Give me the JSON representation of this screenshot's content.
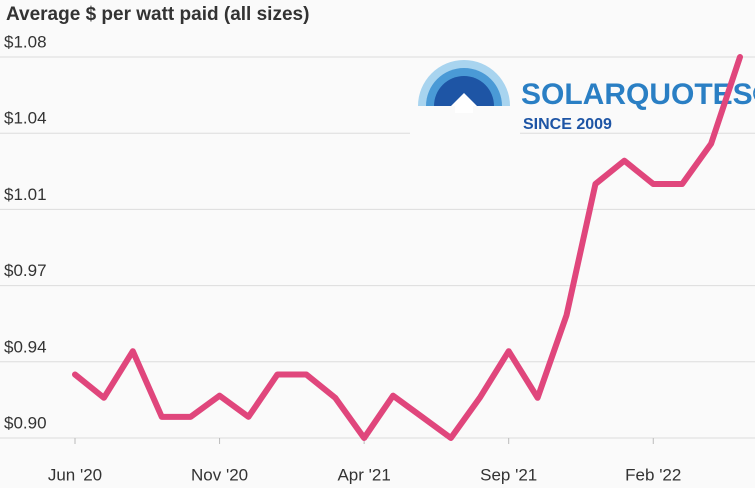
{
  "chart_data": {
    "type": "line",
    "title": "Average $ per watt paid (all sizes)",
    "annotations": [
      "SOLARQUOTES®",
      "SINCE 2009"
    ],
    "categories": [
      "Jun '20",
      null,
      null,
      null,
      null,
      "Nov '20",
      null,
      null,
      null,
      null,
      "Apr '21",
      null,
      null,
      null,
      null,
      "Sep '21",
      null,
      null,
      null,
      null,
      "Feb '22",
      null,
      null,
      null
    ],
    "series": [
      {
        "name": "Average $ per watt",
        "color": "#e0467c",
        "values": [
          0.93,
          0.919,
          0.941,
          0.91,
          0.91,
          0.92,
          0.91,
          0.93,
          0.93,
          0.919,
          0.9,
          0.92,
          0.91,
          0.9,
          0.919,
          0.941,
          0.919,
          0.958,
          1.02,
          1.031,
          1.02,
          1.02,
          1.039,
          1.08
        ]
      }
    ],
    "ylim": [
      0.9,
      1.08
    ],
    "yticks": [
      {
        "value": 0.9,
        "label": "$0.90"
      },
      {
        "value": 0.936,
        "label": "$0.94"
      },
      {
        "value": 0.972,
        "label": "$0.97"
      },
      {
        "value": 1.008,
        "label": "$1.01"
      },
      {
        "value": 1.044,
        "label": "$1.04"
      },
      {
        "value": 1.08,
        "label": "$1.08"
      }
    ],
    "grid": true
  }
}
